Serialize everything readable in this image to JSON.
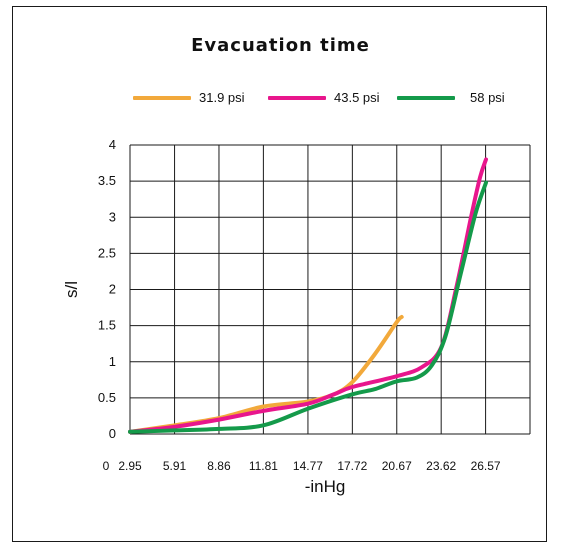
{
  "chart_data": {
    "type": "line",
    "title": "Evacuation time",
    "xlabel": "-inHg",
    "ylabel": "s/l",
    "x_tick_labels": [
      "0",
      "2.95",
      "5.91",
      "8.86",
      "11.81",
      "14.77",
      "17.72",
      "20.67",
      "23.62",
      "26.57"
    ],
    "y_tick_labels": [
      "0",
      "0.5",
      "1",
      "1.5",
      "2",
      "2.5",
      "3",
      "3.5",
      "4"
    ],
    "xlim": [
      2.95,
      29.52
    ],
    "ylim": [
      0,
      4
    ],
    "grid": true,
    "legend_position": "top",
    "series": [
      {
        "name": "31.9 psi",
        "color": "#F2A93B",
        "points": [
          [
            2.95,
            0.03
          ],
          [
            5.91,
            0.12
          ],
          [
            8.86,
            0.22
          ],
          [
            11.81,
            0.38
          ],
          [
            14.77,
            0.45
          ],
          [
            16.5,
            0.55
          ],
          [
            17.72,
            0.72
          ],
          [
            19.2,
            1.1
          ],
          [
            20.67,
            1.55
          ],
          [
            21.0,
            1.62
          ]
        ]
      },
      {
        "name": "43.5 psi",
        "color": "#E8168C",
        "points": [
          [
            2.95,
            0.03
          ],
          [
            5.91,
            0.1
          ],
          [
            8.86,
            0.2
          ],
          [
            11.81,
            0.32
          ],
          [
            14.77,
            0.42
          ],
          [
            16.5,
            0.55
          ],
          [
            17.72,
            0.65
          ],
          [
            20.67,
            0.8
          ],
          [
            22.3,
            0.92
          ],
          [
            23.62,
            1.2
          ],
          [
            24.6,
            2.0
          ],
          [
            25.6,
            3.0
          ],
          [
            26.2,
            3.55
          ],
          [
            26.6,
            3.8
          ]
        ]
      },
      {
        "name": "58 psi",
        "color": "#149A4A",
        "points": [
          [
            2.95,
            0.03
          ],
          [
            5.91,
            0.05
          ],
          [
            8.86,
            0.07
          ],
          [
            11.81,
            0.12
          ],
          [
            14.77,
            0.35
          ],
          [
            17.72,
            0.55
          ],
          [
            19.2,
            0.62
          ],
          [
            20.67,
            0.73
          ],
          [
            22.0,
            0.78
          ],
          [
            23.0,
            0.95
          ],
          [
            23.9,
            1.35
          ],
          [
            24.9,
            2.2
          ],
          [
            25.9,
            3.05
          ],
          [
            26.6,
            3.48
          ]
        ]
      }
    ]
  }
}
